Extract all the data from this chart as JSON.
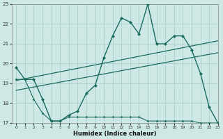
{
  "xlabel": "Humidex (Indice chaleur)",
  "bg_color": "#cde8e5",
  "line_color": "#1a6b5e",
  "grid_color": "#aacfcc",
  "line1_x": [
    0,
    1,
    2,
    3,
    4,
    5,
    6,
    7,
    8,
    9,
    10,
    11,
    12,
    13,
    14,
    15,
    16,
    17,
    18,
    19,
    20,
    21,
    22,
    23
  ],
  "line1_y": [
    19.8,
    19.2,
    19.2,
    18.2,
    17.1,
    17.1,
    17.4,
    17.6,
    18.5,
    18.9,
    20.3,
    21.4,
    22.3,
    22.1,
    21.5,
    23.0,
    21.0,
    21.0,
    21.4,
    21.4,
    20.7,
    19.5,
    17.8,
    17.0
  ],
  "line2_x": [
    0,
    1,
    2,
    3,
    4,
    5,
    6,
    7,
    8,
    9,
    10,
    11,
    12,
    13,
    14,
    15,
    16,
    17,
    18,
    19,
    20,
    21,
    22,
    23
  ],
  "line2_y": [
    19.2,
    19.2,
    18.2,
    17.5,
    17.1,
    17.1,
    17.3,
    17.3,
    17.3,
    17.3,
    17.3,
    17.3,
    17.3,
    17.3,
    17.3,
    17.1,
    17.1,
    17.1,
    17.1,
    17.1,
    17.1,
    17.0,
    17.0,
    17.0
  ],
  "line3_x": [
    0,
    23
  ],
  "line3_y": [
    19.15,
    21.15
  ],
  "line4_x": [
    0,
    23
  ],
  "line4_y": [
    18.65,
    20.55
  ],
  "ylim": [
    17,
    23
  ],
  "xlim": [
    -0.5,
    23
  ],
  "yticks": [
    17,
    18,
    19,
    20,
    21,
    22,
    23
  ],
  "xticks": [
    0,
    1,
    2,
    3,
    4,
    5,
    6,
    7,
    8,
    9,
    10,
    11,
    12,
    13,
    14,
    15,
    16,
    17,
    18,
    19,
    20,
    21,
    22,
    23
  ]
}
